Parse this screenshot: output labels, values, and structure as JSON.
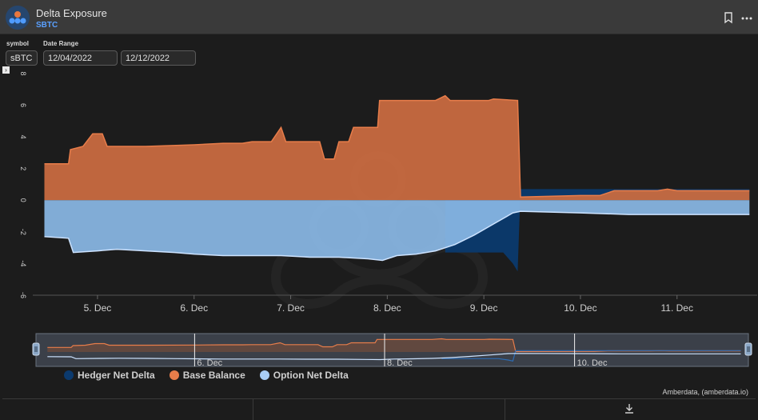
{
  "header": {
    "title": "Delta Exposure",
    "subtitle": "SBTC",
    "bookmark_icon": "bookmark-icon",
    "menu_icon": "more-horizontal-icon"
  },
  "controls": {
    "symbol_label": "symbol",
    "symbol_value": "sBTC",
    "date_range_label": "Date Range",
    "start_date": "12/04/2022",
    "end_date": "12/12/2022"
  },
  "credit": "Amberdata, (amberdata.io)",
  "footer": {
    "download_icon": "download-icon"
  },
  "chart_data": {
    "type": "area",
    "y_ticks": [
      "8",
      "6",
      "4",
      "2",
      "0",
      "-2",
      "-4",
      "-6"
    ],
    "x_ticks": [
      {
        "label": "5. Dec",
        "x": 5
      },
      {
        "label": "6. Dec",
        "x": 6
      },
      {
        "label": "7. Dec",
        "x": 7
      },
      {
        "label": "8. Dec",
        "x": 8
      },
      {
        "label": "9. Dec",
        "x": 9
      },
      {
        "label": "10. Dec",
        "x": 10
      },
      {
        "label": "11. Dec",
        "x": 11
      }
    ],
    "navigator_ticks": [
      {
        "label": "6. Dec",
        "x": 6
      },
      {
        "label": "8. Dec",
        "x": 8
      },
      {
        "label": "10. Dec",
        "x": 10
      }
    ],
    "xlim": [
      4.33,
      11.83
    ],
    "ylim": [
      -6,
      8
    ],
    "legend": [
      "Hedger Net Delta",
      "Base Balance",
      "Option Net Delta"
    ],
    "colors": {
      "hedger": "#0b3a6e",
      "base": "#c86a40",
      "option": "#8ab8e6",
      "base_line": "#e87d4a",
      "option_line": "#cde3ff"
    },
    "series": [
      {
        "name": "Base Balance",
        "points": [
          [
            4.45,
            2.3
          ],
          [
            4.7,
            2.3
          ],
          [
            4.72,
            3.2
          ],
          [
            4.85,
            3.4
          ],
          [
            4.95,
            4.2
          ],
          [
            5.05,
            4.2
          ],
          [
            5.1,
            3.4
          ],
          [
            5.5,
            3.4
          ],
          [
            6.0,
            3.5
          ],
          [
            6.3,
            3.6
          ],
          [
            6.5,
            3.6
          ],
          [
            6.6,
            3.7
          ],
          [
            6.8,
            3.7
          ],
          [
            6.9,
            4.6
          ],
          [
            6.95,
            3.7
          ],
          [
            7.3,
            3.7
          ],
          [
            7.35,
            2.6
          ],
          [
            7.45,
            2.6
          ],
          [
            7.5,
            3.7
          ],
          [
            7.6,
            3.7
          ],
          [
            7.65,
            4.6
          ],
          [
            7.9,
            4.6
          ],
          [
            7.92,
            6.3
          ],
          [
            8.2,
            6.3
          ],
          [
            8.5,
            6.3
          ],
          [
            8.6,
            6.6
          ],
          [
            8.65,
            6.3
          ],
          [
            9.05,
            6.3
          ],
          [
            9.1,
            6.4
          ],
          [
            9.35,
            6.3
          ],
          [
            9.38,
            0.2
          ],
          [
            10.0,
            0.3
          ],
          [
            10.2,
            0.3
          ],
          [
            10.35,
            0.6
          ],
          [
            10.8,
            0.6
          ],
          [
            10.9,
            0.7
          ],
          [
            11.0,
            0.6
          ],
          [
            11.75,
            0.6
          ]
        ]
      },
      {
        "name": "Option Net Delta",
        "points": [
          [
            4.45,
            -2.3
          ],
          [
            4.7,
            -2.4
          ],
          [
            4.75,
            -3.3
          ],
          [
            5.0,
            -3.2
          ],
          [
            5.2,
            -3.1
          ],
          [
            5.5,
            -3.2
          ],
          [
            5.8,
            -3.3
          ],
          [
            6.0,
            -3.4
          ],
          [
            6.3,
            -3.5
          ],
          [
            6.5,
            -3.5
          ],
          [
            6.9,
            -3.5
          ],
          [
            7.2,
            -3.6
          ],
          [
            7.5,
            -3.6
          ],
          [
            7.8,
            -3.7
          ],
          [
            7.95,
            -3.8
          ],
          [
            8.1,
            -3.5
          ],
          [
            8.3,
            -3.4
          ],
          [
            8.5,
            -3.2
          ],
          [
            8.7,
            -2.8
          ],
          [
            8.9,
            -2.2
          ],
          [
            9.1,
            -1.5
          ],
          [
            9.3,
            -0.8
          ],
          [
            9.38,
            -0.7
          ],
          [
            10.0,
            -0.8
          ],
          [
            10.5,
            -0.9
          ],
          [
            11.0,
            -0.9
          ],
          [
            11.75,
            -0.9
          ]
        ]
      },
      {
        "name": "Hedger Net Delta",
        "points": [
          [
            8.6,
            -3.3
          ],
          [
            8.8,
            -3.3
          ],
          [
            9.2,
            -3.3
          ],
          [
            9.3,
            -4.0
          ],
          [
            9.35,
            -4.5
          ],
          [
            9.38,
            0.7
          ],
          [
            10.0,
            0.7
          ],
          [
            10.5,
            0.7
          ],
          [
            11.0,
            0.7
          ],
          [
            11.75,
            0.7
          ]
        ]
      }
    ]
  }
}
